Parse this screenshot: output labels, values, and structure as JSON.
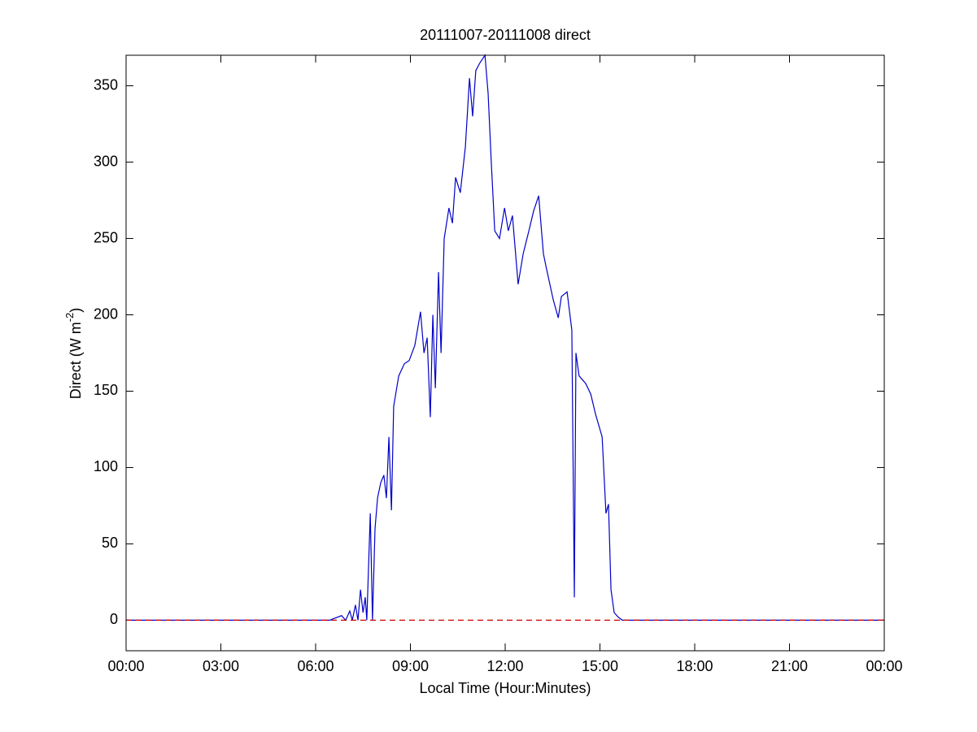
{
  "chart_data": {
    "type": "line",
    "title": "20111007-20111008 direct",
    "xlabel": "Local Time (Hour:Minutes)",
    "ylabel": {
      "text": "Direct (W m",
      "superscript": "-2",
      "suffix": ")"
    },
    "x": [
      0,
      3,
      6,
      6.44,
      6.82,
      6.95,
      7.08,
      7.16,
      7.26,
      7.34,
      7.42,
      7.5,
      7.57,
      7.62,
      7.73,
      7.8,
      7.88,
      7.96,
      8.06,
      8.16,
      8.24,
      8.32,
      8.4,
      8.47,
      8.63,
      8.81,
      8.96,
      9.14,
      9.32,
      9.43,
      9.53,
      9.63,
      9.71,
      9.79,
      9.89,
      9.97,
      10.07,
      10.22,
      10.33,
      10.43,
      10.58,
      10.74,
      10.87,
      10.97,
      11.07,
      11.2,
      11.36,
      11.46,
      11.56,
      11.67,
      11.82,
      11.98,
      12.1,
      12.23,
      12.41,
      12.57,
      12.75,
      12.9,
      13.06,
      13.21,
      13.31,
      13.52,
      13.68,
      13.78,
      13.96,
      14.11,
      14.19,
      14.24,
      14.34,
      14.55,
      14.71,
      14.86,
      15.07,
      15.19,
      15.27,
      15.35,
      15.45,
      15.58,
      15.71,
      18,
      21,
      24
    ],
    "series": [
      {
        "color": "#0000c8",
        "values": [
          0,
          0,
          0,
          0,
          3,
          0,
          6,
          0,
          10,
          0,
          20,
          5,
          15,
          0,
          70,
          0,
          60,
          80,
          90,
          95,
          80,
          120,
          72,
          140,
          160,
          168,
          170,
          180,
          202,
          175,
          185,
          133,
          200,
          152,
          228,
          175,
          250,
          270,
          260,
          290,
          280,
          310,
          355,
          330,
          360,
          365,
          370,
          345,
          300,
          255,
          250,
          270,
          255,
          265,
          220,
          240,
          255,
          268,
          278,
          240,
          230,
          210,
          198,
          212,
          215,
          190,
          15,
          175,
          160,
          155,
          148,
          135,
          120,
          70,
          76,
          20,
          5,
          2,
          0,
          0,
          0,
          0
        ]
      }
    ],
    "reference_line": {
      "value": 0,
      "color": "#d00000",
      "dashed": true
    },
    "xlim": [
      0,
      24
    ],
    "xticks": [
      {
        "value": 0,
        "label": "00:00"
      },
      {
        "value": 3,
        "label": "03:00"
      },
      {
        "value": 6,
        "label": "06:00"
      },
      {
        "value": 9,
        "label": "09:00"
      },
      {
        "value": 12,
        "label": "12:00"
      },
      {
        "value": 15,
        "label": "15:00"
      },
      {
        "value": 18,
        "label": "18:00"
      },
      {
        "value": 21,
        "label": "21:00"
      },
      {
        "value": 24,
        "label": "00:00"
      }
    ],
    "ylim": [
      -20,
      370
    ],
    "yticks": [
      0,
      50,
      100,
      150,
      200,
      250,
      300,
      350
    ],
    "grid": false
  }
}
